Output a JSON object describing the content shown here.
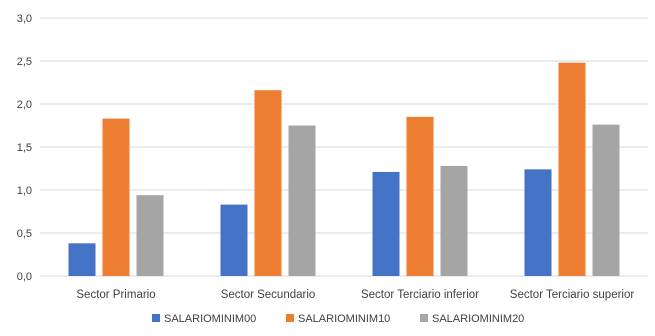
{
  "chart_data": {
    "type": "bar",
    "title": "",
    "xlabel": "",
    "ylabel": "",
    "categories": [
      "Sector Primario",
      "Sector Secundario",
      "Sector Terciario inferior",
      "Sector Terciario superior"
    ],
    "series": [
      {
        "name": "SALARIOMINIM00",
        "color": "#4472c4",
        "values": [
          0.38,
          0.83,
          1.21,
          1.24
        ]
      },
      {
        "name": "SALARIOMINIM10",
        "color": "#ed7d31",
        "values": [
          1.83,
          2.16,
          1.85,
          2.48
        ]
      },
      {
        "name": "SALARIOMINIM20",
        "color": "#a5a5a5",
        "values": [
          0.94,
          1.75,
          1.28,
          1.76
        ]
      }
    ],
    "ylim": [
      0,
      3.0
    ],
    "yticks": [
      "0,0",
      "0,5",
      "1,0",
      "1,5",
      "2,0",
      "2,5",
      "3,0"
    ],
    "grid": true,
    "gridColor": "#d9d9d9",
    "legend": "bottom"
  }
}
